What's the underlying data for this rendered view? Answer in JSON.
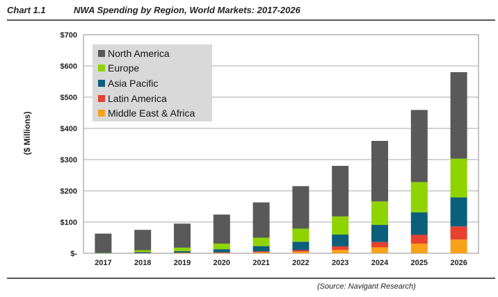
{
  "header": {
    "chart_number": "Chart 1.1",
    "title": "NWA Spending by Region, World Markets: 2017-2026"
  },
  "footer": {
    "source": "(Source: Navigant Research)"
  },
  "chart_data": {
    "type": "bar",
    "stacked": true,
    "title": "NWA Spending by Region, World Markets: 2017-2026",
    "ylabel": "($ Millions)",
    "xlabel": "",
    "ylim": [
      0,
      700
    ],
    "yticks": [
      0,
      100,
      200,
      300,
      400,
      500,
      600,
      700
    ],
    "ytick_labels": [
      "$-",
      "$100",
      "$200",
      "$300",
      "$400",
      "$500",
      "$600",
      "$700"
    ],
    "grid": true,
    "legend_position": "top-left",
    "categories": [
      "2017",
      "2018",
      "2019",
      "2020",
      "2021",
      "2022",
      "2023",
      "2024",
      "2025",
      "2026"
    ],
    "series": [
      {
        "name": "Middle East & Africa",
        "color": "#f9a11b",
        "values": [
          0,
          0,
          1,
          1,
          3,
          5,
          11,
          19,
          31,
          44
        ]
      },
      {
        "name": "Latin America",
        "color": "#e8412f",
        "values": [
          0,
          1,
          1,
          2,
          3,
          5,
          11,
          17,
          28,
          42
        ]
      },
      {
        "name": "Asia Pacific",
        "color": "#0c5f7a",
        "values": [
          1,
          3,
          5,
          10,
          17,
          27,
          38,
          55,
          72,
          93
        ]
      },
      {
        "name": "Europe",
        "color": "#8fd400",
        "values": [
          1,
          6,
          11,
          18,
          27,
          42,
          58,
          75,
          97,
          124
        ]
      },
      {
        "name": "North America",
        "color": "#595959",
        "values": [
          61,
          65,
          77,
          93,
          113,
          136,
          162,
          194,
          231,
          277
        ]
      }
    ]
  }
}
